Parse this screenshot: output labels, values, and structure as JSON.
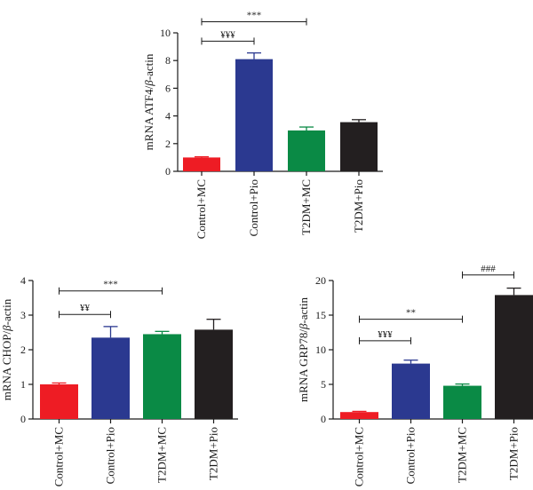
{
  "colors": {
    "red": "#ee1c24",
    "blue": "#2b3990",
    "green": "#0a8a45",
    "black": "#231f20",
    "axis": "#1a1a1a"
  },
  "chart_data": [
    {
      "type": "bar",
      "ylabel_prefix": "mRNA ATF4/",
      "ylabel_beta": "β",
      "ylabel_suffix": "-actin",
      "categories": [
        "Control+MC",
        "Control+Pio",
        "T2DM+MC",
        "T2DM+Pio"
      ],
      "values": [
        1.0,
        8.1,
        2.95,
        3.55
      ],
      "errors": [
        0.05,
        0.45,
        0.25,
        0.18
      ],
      "bar_colors": [
        "red",
        "blue",
        "green",
        "black"
      ],
      "ylim": [
        0,
        10
      ],
      "yticks": [
        0,
        2,
        4,
        6,
        8,
        10
      ],
      "brackets": [
        {
          "from": 0,
          "to": 2,
          "label": "***",
          "y": 10.8
        },
        {
          "from": 0,
          "to": 1,
          "label": "¥¥¥",
          "y": 9.4
        }
      ]
    },
    {
      "type": "bar",
      "ylabel_prefix": "mRNA CHOP/",
      "ylabel_beta": "β",
      "ylabel_suffix": "-actin",
      "categories": [
        "Control+MC",
        "Control+Pio",
        "T2DM+MC",
        "T2DM+Pio"
      ],
      "values": [
        1.0,
        2.35,
        2.45,
        2.58
      ],
      "errors": [
        0.04,
        0.32,
        0.08,
        0.3
      ],
      "bar_colors": [
        "red",
        "blue",
        "green",
        "black"
      ],
      "ylim": [
        0,
        4
      ],
      "yticks": [
        0,
        1,
        2,
        3,
        4
      ],
      "brackets": [
        {
          "from": 0,
          "to": 2,
          "label": "***",
          "y": 3.7
        },
        {
          "from": 0,
          "to": 1,
          "label": "¥¥",
          "y": 3.02
        }
      ]
    },
    {
      "type": "bar",
      "ylabel_prefix": "mRNA GRP78/",
      "ylabel_beta": "β",
      "ylabel_suffix": "-actin",
      "categories": [
        "Control+MC",
        "Control+Pio",
        "T2DM+MC",
        "T2DM+Pio"
      ],
      "values": [
        1.0,
        8.0,
        4.8,
        17.9
      ],
      "errors": [
        0.1,
        0.5,
        0.25,
        1.0
      ],
      "bar_colors": [
        "red",
        "blue",
        "green",
        "black"
      ],
      "ylim": [
        0,
        20
      ],
      "yticks": [
        0,
        5,
        10,
        15,
        20
      ],
      "brackets": [
        {
          "from": 2,
          "to": 3,
          "label": "###",
          "y": 20.8
        },
        {
          "from": 0,
          "to": 2,
          "label": "**",
          "y": 14.4
        },
        {
          "from": 0,
          "to": 1,
          "label": "¥¥¥",
          "y": 11.3
        }
      ]
    }
  ]
}
